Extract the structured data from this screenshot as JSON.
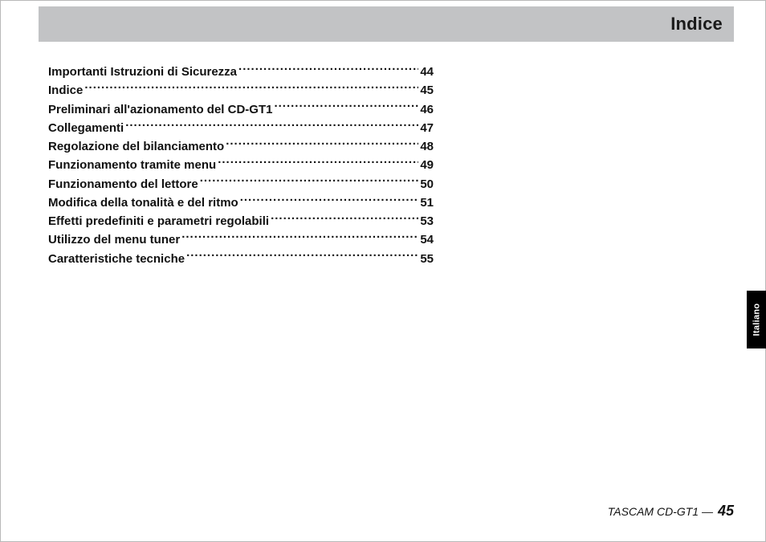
{
  "header": {
    "title": "Indice"
  },
  "toc": {
    "entries": [
      {
        "label": "Importanti Istruzioni di Sicurezza",
        "page": "44"
      },
      {
        "label": "Indice",
        "page": "45"
      },
      {
        "label": "Preliminari all'azionamento del CD-GT1",
        "page": "46"
      },
      {
        "label": "Collegamenti",
        "page": "47"
      },
      {
        "label": "Regolazione del bilanciamento",
        "page": "48"
      },
      {
        "label": "Funzionamento tramite menu",
        "page": "49"
      },
      {
        "label": "Funzionamento del lettore",
        "page": "50"
      },
      {
        "label": "Modifica della tonalità e del ritmo",
        "page": "51"
      },
      {
        "label": "Effetti predefiniti e parametri regolabili",
        "page": "53"
      },
      {
        "label": "Utilizzo del menu tuner",
        "page": "54"
      },
      {
        "label": "Caratteristiche tecniche",
        "page": "55"
      }
    ]
  },
  "lang_tab": {
    "label": "Italiano"
  },
  "footer": {
    "product": "TASCAM CD-GT1 —",
    "page": "45"
  }
}
